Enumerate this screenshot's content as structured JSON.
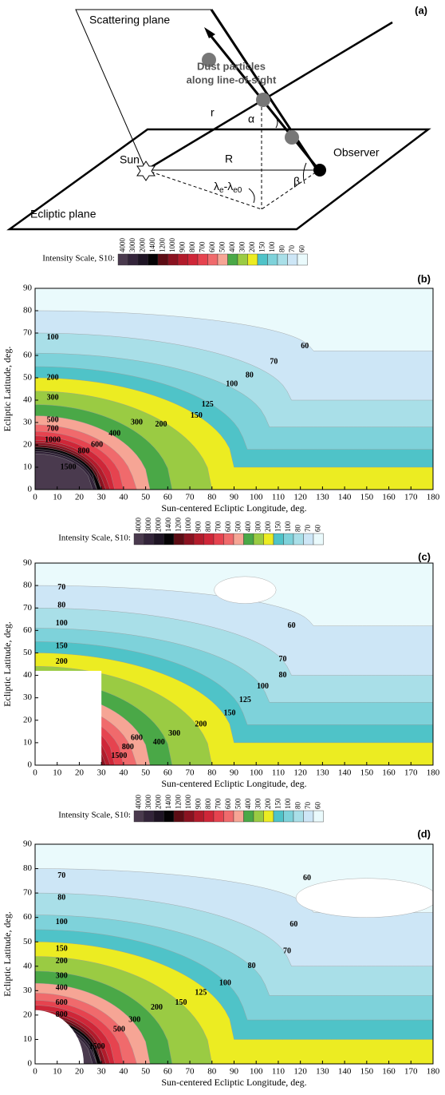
{
  "panel_a": {
    "label": "(a)",
    "scattering_plane": "Scattering plane",
    "dust_line1": "Dust particles",
    "dust_line2": "along line-of-sight",
    "r": "r",
    "alpha": "α",
    "sun": "Sun",
    "R": "R",
    "beta": "β",
    "observer": "Observer",
    "lambda1": "λ",
    "sub1": "e",
    "lambda2": "-λ",
    "sub2": "e0",
    "ecliptic_plane": "Ecliptic plane"
  },
  "intensity_scale": {
    "title": "Intensity Scale, S10:",
    "labels": [
      4000,
      3000,
      2000,
      1400,
      1200,
      1000,
      900,
      800,
      700,
      600,
      500,
      400,
      300,
      200,
      150,
      100,
      80,
      70,
      60
    ],
    "colors": [
      "#4a3a4e",
      "#33243a",
      "#1e1424",
      "#050305",
      "#5c0c14",
      "#8a1220",
      "#b21b2b",
      "#cf2638",
      "#e6434f",
      "#f06a6c",
      "#f6a595",
      "#4aa847",
      "#9acb43",
      "#ecec22",
      "#4fc3c8",
      "#7ed2da",
      "#a9dfe8",
      "#cde6f6",
      "#eafafc"
    ]
  },
  "axes": {
    "xlabel": "Sun-centered Ecliptic Longitude, deg.",
    "ylabel": "Ecliptic Latitude, deg.",
    "xlim": [
      0,
      180
    ],
    "ylim": [
      0,
      90
    ],
    "xticks": [
      0,
      10,
      20,
      30,
      40,
      50,
      60,
      70,
      80,
      90,
      100,
      110,
      120,
      130,
      140,
      150,
      160,
      170,
      180
    ],
    "yticks": [
      0,
      10,
      20,
      30,
      40,
      50,
      60,
      70,
      80,
      90
    ]
  },
  "panels": [
    {
      "label": "(b)",
      "contour_labels": [
        100,
        60,
        70,
        200,
        80,
        300,
        100,
        500,
        125,
        700,
        150,
        1000,
        200,
        300,
        400,
        600,
        800,
        1500
      ]
    },
    {
      "label": "(c)",
      "contour_labels": [
        70,
        80,
        100,
        150,
        200,
        60,
        70,
        80,
        100,
        125,
        150,
        200,
        300,
        400,
        600,
        800,
        1500
      ]
    },
    {
      "label": "(d)",
      "contour_labels": [
        70,
        80,
        100,
        150,
        200,
        300,
        400,
        600,
        800,
        60,
        60,
        70,
        80,
        100,
        125,
        150,
        200,
        300,
        500,
        1500
      ]
    }
  ]
}
